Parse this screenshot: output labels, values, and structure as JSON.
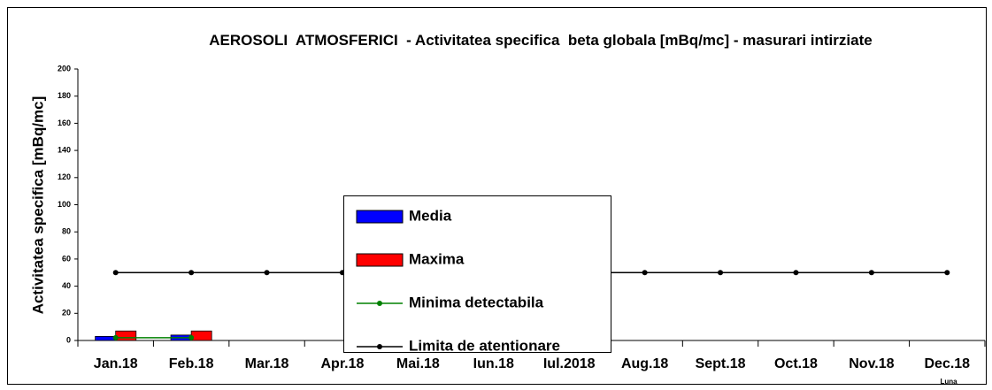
{
  "chart_data": {
    "type": "bar",
    "title": "AEROSOLI  ATMOSFERICI  - Activitatea specifica  beta globala [mBq/mc] - masurari intirziate",
    "y_label": "Activitatea specifica [mBq/mc]",
    "x_label": "Luna",
    "categories": [
      "Jan.18",
      "Feb.18",
      "Mar.18",
      "Apr.18",
      "Mai.18",
      "Iun.18",
      "Iul.2018",
      "Aug.18",
      "Sept.18",
      "Oct.18",
      "Nov.18",
      "Dec.18"
    ],
    "series": [
      {
        "name": "Media",
        "type": "bar",
        "color": "#0000ff",
        "values": [
          3,
          4,
          null,
          null,
          null,
          null,
          null,
          null,
          null,
          null,
          null,
          null
        ]
      },
      {
        "name": "Maxima",
        "type": "bar",
        "color": "#ff0000",
        "values": [
          7,
          7,
          null,
          null,
          null,
          null,
          null,
          null,
          null,
          null,
          null,
          null
        ]
      },
      {
        "name": "Minima detectabila",
        "type": "line",
        "color": "#008000",
        "values": [
          2,
          2,
          null,
          null,
          null,
          null,
          null,
          null,
          null,
          null,
          null,
          null
        ]
      },
      {
        "name": "Limita de atentionare",
        "type": "line",
        "color": "#000000",
        "values": [
          50,
          50,
          50,
          50,
          50,
          50,
          50,
          50,
          50,
          50,
          50,
          50
        ]
      }
    ],
    "ylim": [
      0,
      200
    ],
    "yticks": [
      0,
      20,
      40,
      60,
      80,
      100,
      120,
      140,
      160,
      180,
      200
    ],
    "grid": false
  }
}
